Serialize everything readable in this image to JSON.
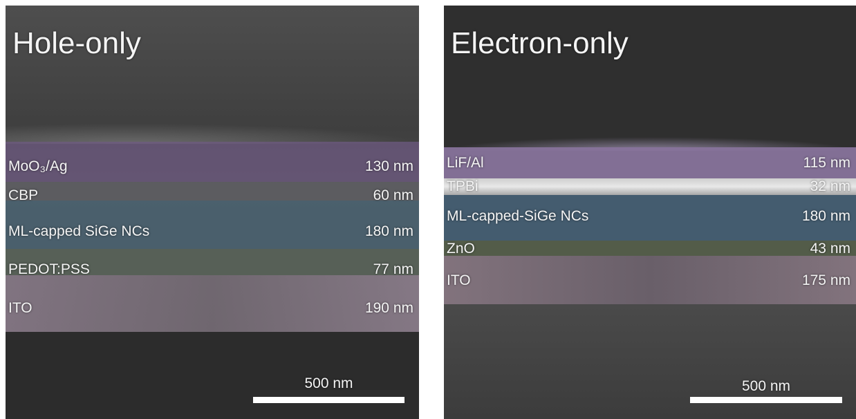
{
  "panels": [
    {
      "title": "Hole-only",
      "layers": [
        {
          "name": "MoO₃/Ag",
          "thickness": "130 nm"
        },
        {
          "name": "CBP",
          "thickness": "60 nm"
        },
        {
          "name": "ML-capped SiGe NCs",
          "thickness": "180 nm"
        },
        {
          "name": "PEDOT:PSS",
          "thickness": "77 nm"
        },
        {
          "name": "ITO",
          "thickness": "190 nm"
        }
      ],
      "scale_bar": "500 nm"
    },
    {
      "title": "Electron-only",
      "layers": [
        {
          "name": "LiF/Al",
          "thickness": "115 nm"
        },
        {
          "name": "TPBi",
          "thickness": "32 nm"
        },
        {
          "name": "ML-capped-SiGe NCs",
          "thickness": "180 nm"
        },
        {
          "name": "ZnO",
          "thickness": "43 nm"
        },
        {
          "name": "ITO",
          "thickness": "175 nm"
        }
      ],
      "scale_bar": "500 nm"
    }
  ]
}
